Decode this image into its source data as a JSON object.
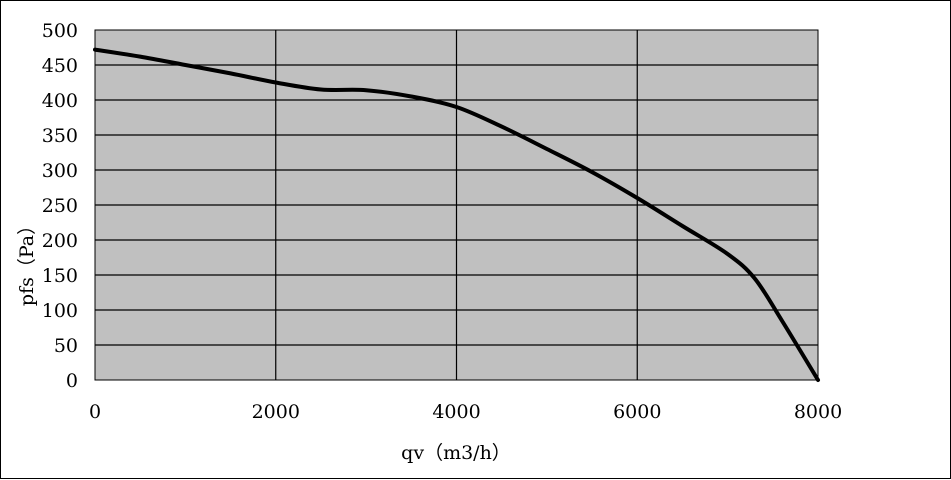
{
  "chart_data": {
    "type": "line",
    "title": "",
    "xlabel": "qv（m3/h）",
    "ylabel": "pfs（Pa）",
    "xlim": [
      0,
      8000
    ],
    "ylim": [
      0,
      500
    ],
    "x_ticks": [
      "0",
      "2000",
      "4000",
      "6000",
      "8000"
    ],
    "y_ticks": [
      "0",
      "50",
      "100",
      "150",
      "200",
      "250",
      "300",
      "350",
      "400",
      "450",
      "500"
    ],
    "grid": true,
    "legend": "none",
    "plot_background": "#c0c0c0",
    "line_color": "#000000",
    "series": [
      {
        "x": [
          0,
          500,
          1000,
          1500,
          2000,
          2500,
          3000,
          3500,
          4000,
          4500,
          5000,
          5500,
          6000,
          6500,
          7000,
          7300,
          7600,
          8000
        ],
        "y": [
          472,
          462,
          450,
          438,
          425,
          415,
          414,
          405,
          390,
          362,
          330,
          297,
          260,
          220,
          180,
          145,
          85,
          0
        ]
      }
    ]
  }
}
